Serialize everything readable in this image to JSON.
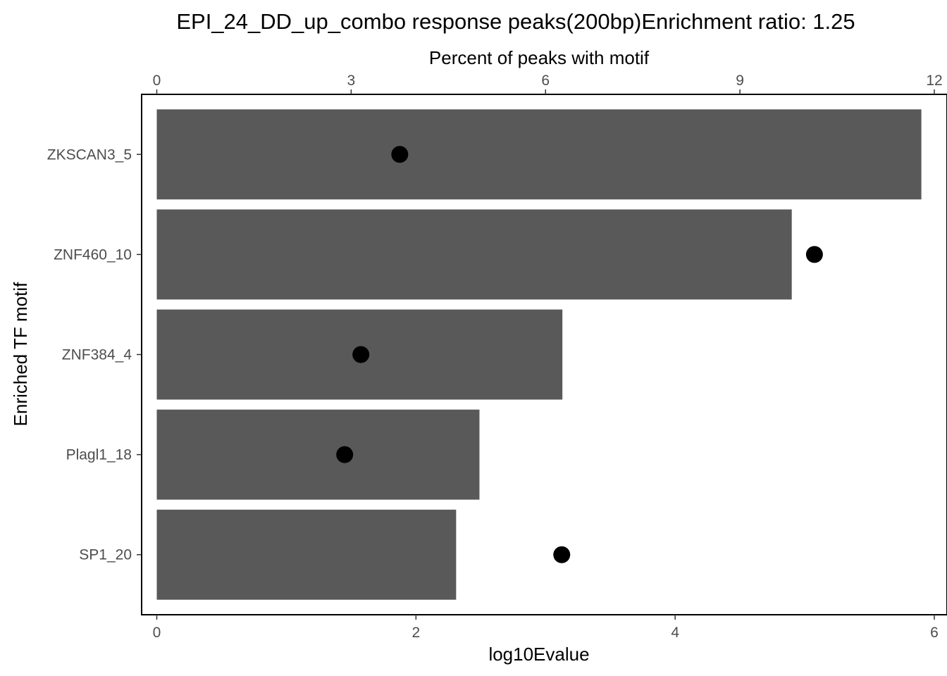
{
  "chart_data": {
    "type": "bar",
    "title": "EPI_24_DD_up_combo response peaks(200bp)Enrichment ratio: 1.25",
    "xlabel": "log10Evalue",
    "x2label": "Percent of peaks with motif",
    "ylabel": "Enriched TF motif",
    "categories": [
      "ZKSCAN3_5",
      "ZNF460_10",
      "ZNF384_4",
      "Plagl1_18",
      "SP1_20"
    ],
    "series": [
      {
        "values": [
          5.9,
          4.9,
          3.13,
          2.49,
          2.31
        ]
      },
      {
        "values": [
          3.75,
          10.15,
          3.15,
          2.9,
          6.25
        ]
      }
    ],
    "xlim": [
      0,
      6
    ],
    "x2lim": [
      0,
      12
    ],
    "xticks": [
      "0",
      "2",
      "4",
      "6"
    ],
    "x2ticks": [
      "0",
      "3",
      "6",
      "9",
      "12"
    ],
    "grid": false,
    "bar_color": "#595959",
    "point_color": "#000000"
  }
}
